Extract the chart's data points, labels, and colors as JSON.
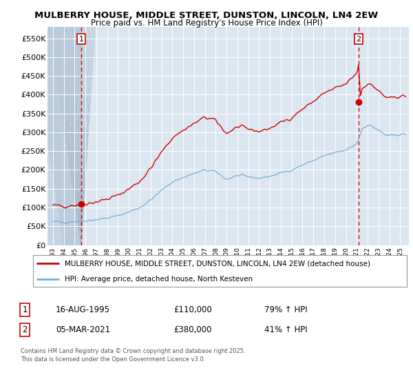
{
  "title_line1": "MULBERRY HOUSE, MIDDLE STREET, DUNSTON, LINCOLN, LN4 2EW",
  "title_line2": "Price paid vs. HM Land Registry's House Price Index (HPI)",
  "red_label": "MULBERRY HOUSE, MIDDLE STREET, DUNSTON, LINCOLN, LN4 2EW (detached house)",
  "blue_label": "HPI: Average price, detached house, North Kesteven",
  "annotation1_date": "16-AUG-1995",
  "annotation1_price": "£110,000",
  "annotation1_change": "79% ↑ HPI",
  "annotation1_year": 1995.62,
  "annotation1_value": 110000,
  "annotation2_date": "05-MAR-2021",
  "annotation2_price": "£380,000",
  "annotation2_change": "41% ↑ HPI",
  "annotation2_year": 2021.17,
  "annotation2_value": 380000,
  "footnote": "Contains HM Land Registry data © Crown copyright and database right 2025.\nThis data is licensed under the Open Government Licence v3.0.",
  "ylim": [
    0,
    580000
  ],
  "yticks": [
    0,
    50000,
    100000,
    150000,
    200000,
    250000,
    300000,
    350000,
    400000,
    450000,
    500000,
    550000
  ],
  "ytick_labels": [
    "£0",
    "£50K",
    "£100K",
    "£150K",
    "£200K",
    "£250K",
    "£300K",
    "£350K",
    "£400K",
    "£450K",
    "£500K",
    "£550K"
  ],
  "xlim_start": 1992.5,
  "xlim_end": 2025.8,
  "xtick_years": [
    1993,
    1994,
    1995,
    1996,
    1997,
    1998,
    1999,
    2000,
    2001,
    2002,
    2003,
    2004,
    2005,
    2006,
    2007,
    2008,
    2009,
    2010,
    2011,
    2012,
    2013,
    2014,
    2015,
    2016,
    2017,
    2018,
    2019,
    2020,
    2021,
    2022,
    2023,
    2024,
    2025
  ],
  "background_color": "#dce6f1",
  "hatch_end_year": 1995.62,
  "grid_color": "#ffffff",
  "red_color": "#cc0000",
  "blue_color": "#6baed6",
  "dashed_color": "#cc0000",
  "fig_bg": "#ffffff"
}
